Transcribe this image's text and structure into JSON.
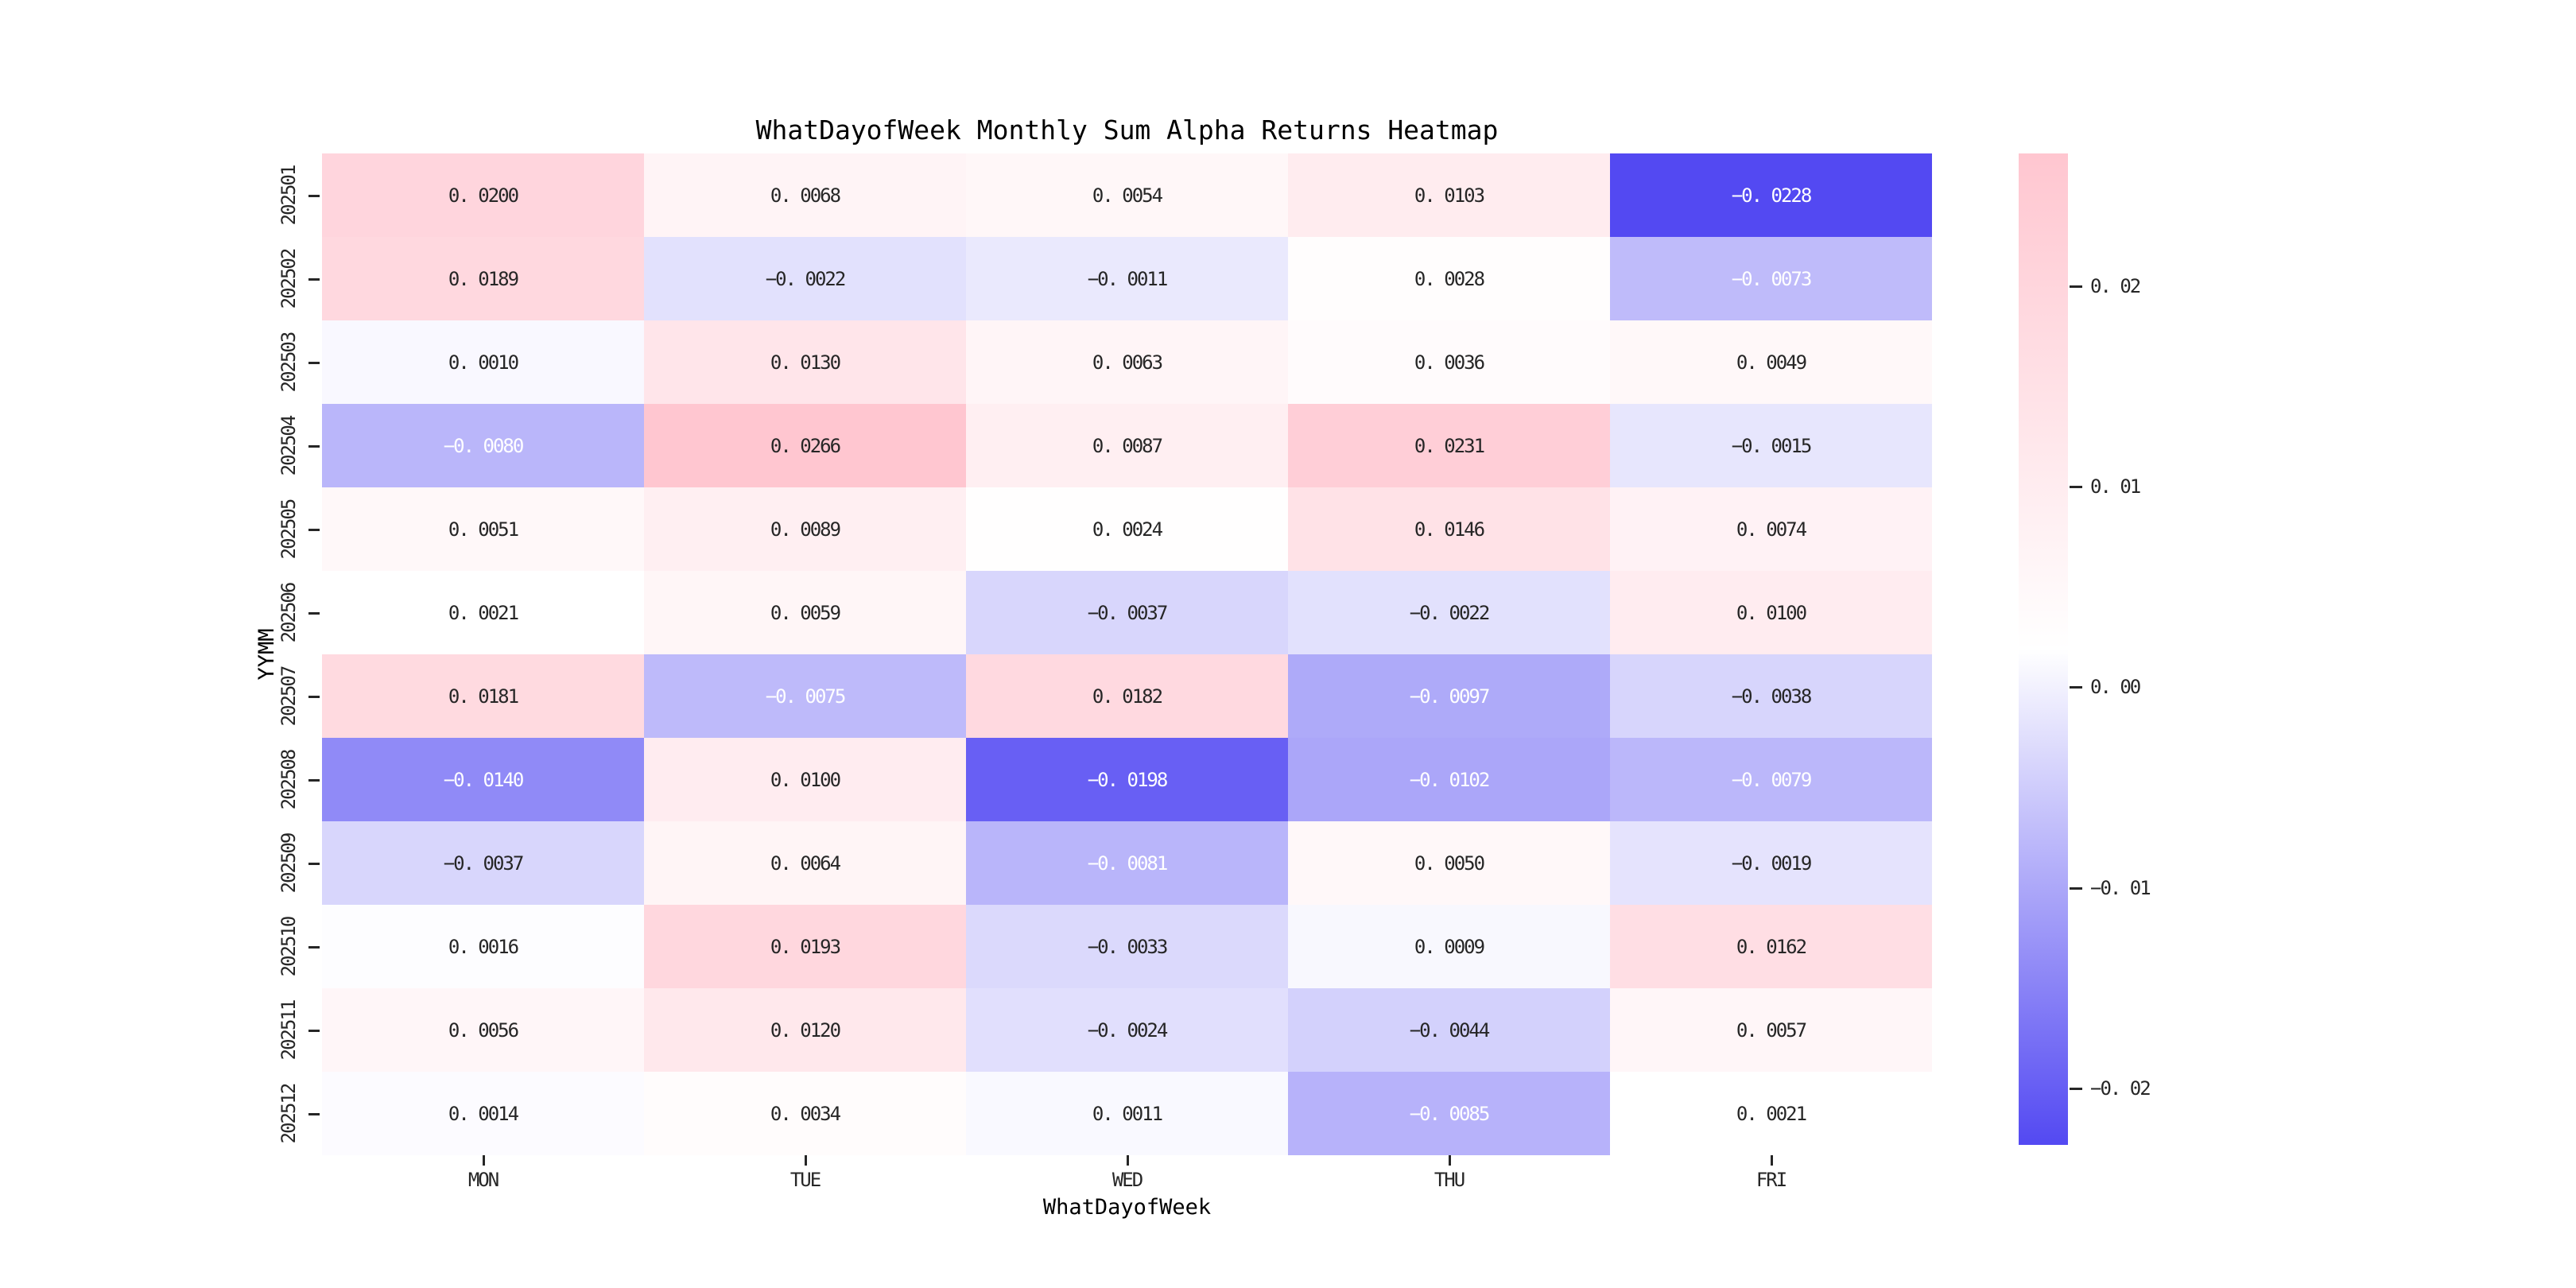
{
  "title": "WhatDayofWeek Monthly Sum Alpha Returns Heatmap",
  "chart_data": {
    "type": "heatmap",
    "title": "WhatDayofWeek Monthly Sum Alpha Returns Heatmap",
    "xlabel": "WhatDayofWeek",
    "ylabel": "YYMM",
    "x_categories": [
      "MON",
      "TUE",
      "WED",
      "THU",
      "FRI"
    ],
    "y_categories": [
      "202501",
      "202502",
      "202503",
      "202504",
      "202505",
      "202506",
      "202507",
      "202508",
      "202509",
      "202510",
      "202511",
      "202512"
    ],
    "values": [
      [
        0.02,
        0.0068,
        0.0054,
        0.0103,
        -0.0228
      ],
      [
        0.0189,
        -0.0022,
        -0.0011,
        0.0028,
        -0.0073
      ],
      [
        0.001,
        0.013,
        0.0063,
        0.0036,
        0.0049
      ],
      [
        -0.008,
        0.0266,
        0.0087,
        0.0231,
        -0.0015
      ],
      [
        0.0051,
        0.0089,
        0.0024,
        0.0146,
        0.0074
      ],
      [
        0.0021,
        0.0059,
        -0.0037,
        -0.0022,
        0.01
      ],
      [
        0.0181,
        -0.0075,
        0.0182,
        -0.0097,
        -0.0038
      ],
      [
        -0.014,
        0.01,
        -0.0198,
        -0.0102,
        -0.0079
      ],
      [
        -0.0037,
        0.0064,
        -0.0081,
        0.005,
        -0.0019
      ],
      [
        0.0016,
        0.0193,
        -0.0033,
        0.0009,
        0.0162
      ],
      [
        0.0056,
        0.012,
        -0.0024,
        -0.0044,
        0.0057
      ],
      [
        0.0014,
        0.0034,
        0.0011,
        -0.0085,
        0.0021
      ]
    ],
    "annotations": [
      [
        "0. 0200",
        "0. 0068",
        "0. 0054",
        "0. 0103",
        "−0. 0228"
      ],
      [
        "0. 0189",
        "−0. 0022",
        "−0. 0011",
        "0. 0028",
        "−0. 0073"
      ],
      [
        "0. 0010",
        "0. 0130",
        "0. 0063",
        "0. 0036",
        "0. 0049"
      ],
      [
        "−0. 0080",
        "0. 0266",
        "0. 0087",
        "0. 0231",
        "−0. 0015"
      ],
      [
        "0. 0051",
        "0. 0089",
        "0. 0024",
        "0. 0146",
        "0. 0074"
      ],
      [
        "0. 0021",
        "0. 0059",
        "−0. 0037",
        "−0. 0022",
        "0. 0100"
      ],
      [
        "0. 0181",
        "−0. 0075",
        "0. 0182",
        "−0. 0097",
        "−0. 0038"
      ],
      [
        "−0. 0140",
        "0. 0100",
        "−0. 0198",
        "−0. 0102",
        "−0. 0079"
      ],
      [
        "−0. 0037",
        "0. 0064",
        "−0. 0081",
        "0. 0050",
        "−0. 0019"
      ],
      [
        "0. 0016",
        "0. 0193",
        "−0. 0033",
        "0. 0009",
        "0. 0162"
      ],
      [
        "0. 0056",
        "0. 0120",
        "−0. 0024",
        "−0. 0044",
        "0. 0057"
      ],
      [
        "0. 0014",
        "0. 0034",
        "0. 0011",
        "−0. 0085",
        "0. 0021"
      ]
    ],
    "vmin": -0.0228,
    "vmax": 0.0266,
    "colormap": {
      "negative_end": "#5349f2",
      "center": "#ffffff",
      "positive_end": "#ffc6d0"
    },
    "annotation_text_colors": {
      "dark": "#262626",
      "light": "#ffffff",
      "light_threshold": -0.006
    },
    "grid": false,
    "legend": false,
    "colorbar": {
      "position": "right",
      "ticks": [
        {
          "value": 0.02,
          "label": "0. 02"
        },
        {
          "value": 0.01,
          "label": "0. 01"
        },
        {
          "value": 0.0,
          "label": "0. 00"
        },
        {
          "value": -0.01,
          "label": "−0. 01"
        },
        {
          "value": -0.02,
          "label": "−0. 02"
        }
      ]
    }
  }
}
